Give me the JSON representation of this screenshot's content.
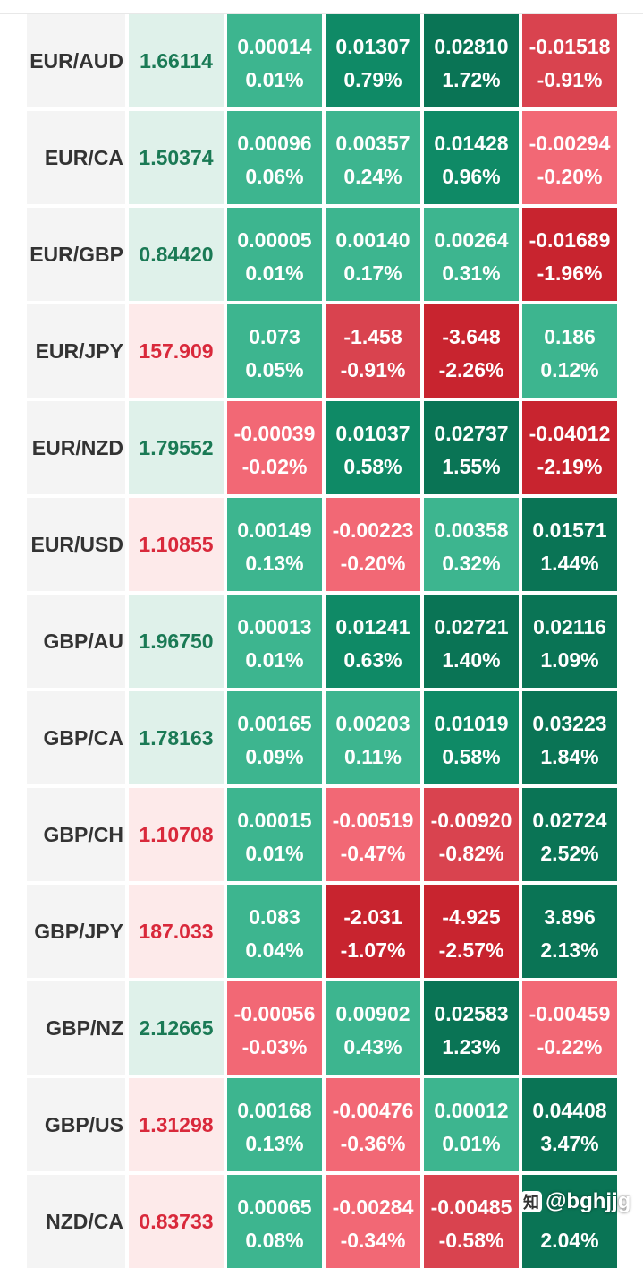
{
  "rows": [
    {
      "symbol": "EUR/AUD",
      "price": "1.66114",
      "trend": "up",
      "changes": [
        {
          "abs": "0.00014",
          "pct": "0.01%",
          "color": "#3db58f"
        },
        {
          "abs": "0.01307",
          "pct": "0.79%",
          "color": "#0f8a66"
        },
        {
          "abs": "0.02810",
          "pct": "1.72%",
          "color": "#0a7455"
        },
        {
          "abs": "-0.01518",
          "pct": "-0.91%",
          "color": "#d9434f"
        }
      ]
    },
    {
      "symbol": "EUR/CA",
      "price": "1.50374",
      "trend": "up",
      "changes": [
        {
          "abs": "0.00096",
          "pct": "0.06%",
          "color": "#3db58f"
        },
        {
          "abs": "0.00357",
          "pct": "0.24%",
          "color": "#3db58f"
        },
        {
          "abs": "0.01428",
          "pct": "0.96%",
          "color": "#0f8a66"
        },
        {
          "abs": "-0.00294",
          "pct": "-0.20%",
          "color": "#f26875"
        }
      ]
    },
    {
      "symbol": "EUR/GBP",
      "price": "0.84420",
      "trend": "up",
      "changes": [
        {
          "abs": "0.00005",
          "pct": "0.01%",
          "color": "#3db58f"
        },
        {
          "abs": "0.00140",
          "pct": "0.17%",
          "color": "#3db58f"
        },
        {
          "abs": "0.00264",
          "pct": "0.31%",
          "color": "#3db58f"
        },
        {
          "abs": "-0.01689",
          "pct": "-1.96%",
          "color": "#c8242f"
        }
      ]
    },
    {
      "symbol": "EUR/JPY",
      "price": "157.909",
      "trend": "down",
      "changes": [
        {
          "abs": "0.073",
          "pct": "0.05%",
          "color": "#3db58f"
        },
        {
          "abs": "-1.458",
          "pct": "-0.91%",
          "color": "#d9434f"
        },
        {
          "abs": "-3.648",
          "pct": "-2.26%",
          "color": "#c8242f"
        },
        {
          "abs": "0.186",
          "pct": "0.12%",
          "color": "#3db58f"
        }
      ]
    },
    {
      "symbol": "EUR/NZD",
      "price": "1.79552",
      "trend": "up",
      "changes": [
        {
          "abs": "-0.00039",
          "pct": "-0.02%",
          "color": "#f26875"
        },
        {
          "abs": "0.01037",
          "pct": "0.58%",
          "color": "#0f8a66"
        },
        {
          "abs": "0.02737",
          "pct": "1.55%",
          "color": "#0a7455"
        },
        {
          "abs": "-0.04012",
          "pct": "-2.19%",
          "color": "#c8242f"
        }
      ]
    },
    {
      "symbol": "EUR/USD",
      "price": "1.10855",
      "trend": "down",
      "changes": [
        {
          "abs": "0.00149",
          "pct": "0.13%",
          "color": "#3db58f"
        },
        {
          "abs": "-0.00223",
          "pct": "-0.20%",
          "color": "#f26875"
        },
        {
          "abs": "0.00358",
          "pct": "0.32%",
          "color": "#3db58f"
        },
        {
          "abs": "0.01571",
          "pct": "1.44%",
          "color": "#0a7455"
        }
      ]
    },
    {
      "symbol": "GBP/AU",
      "price": "1.96750",
      "trend": "up",
      "changes": [
        {
          "abs": "0.00013",
          "pct": "0.01%",
          "color": "#3db58f"
        },
        {
          "abs": "0.01241",
          "pct": "0.63%",
          "color": "#0f8a66"
        },
        {
          "abs": "0.02721",
          "pct": "1.40%",
          "color": "#0a7455"
        },
        {
          "abs": "0.02116",
          "pct": "1.09%",
          "color": "#0a7455"
        }
      ]
    },
    {
      "symbol": "GBP/CA",
      "price": "1.78163",
      "trend": "up",
      "changes": [
        {
          "abs": "0.00165",
          "pct": "0.09%",
          "color": "#3db58f"
        },
        {
          "abs": "0.00203",
          "pct": "0.11%",
          "color": "#3db58f"
        },
        {
          "abs": "0.01019",
          "pct": "0.58%",
          "color": "#0f8a66"
        },
        {
          "abs": "0.03223",
          "pct": "1.84%",
          "color": "#0a7455"
        }
      ]
    },
    {
      "symbol": "GBP/CH",
      "price": "1.10708",
      "trend": "down",
      "changes": [
        {
          "abs": "0.00015",
          "pct": "0.01%",
          "color": "#3db58f"
        },
        {
          "abs": "-0.00519",
          "pct": "-0.47%",
          "color": "#f26875"
        },
        {
          "abs": "-0.00920",
          "pct": "-0.82%",
          "color": "#d9434f"
        },
        {
          "abs": "0.02724",
          "pct": "2.52%",
          "color": "#0a7455"
        }
      ]
    },
    {
      "symbol": "GBP/JPY",
      "price": "187.033",
      "trend": "down",
      "changes": [
        {
          "abs": "0.083",
          "pct": "0.04%",
          "color": "#3db58f"
        },
        {
          "abs": "-2.031",
          "pct": "-1.07%",
          "color": "#c8242f"
        },
        {
          "abs": "-4.925",
          "pct": "-2.57%",
          "color": "#c8242f"
        },
        {
          "abs": "3.896",
          "pct": "2.13%",
          "color": "#0a7455"
        }
      ]
    },
    {
      "symbol": "GBP/NZ",
      "price": "2.12665",
      "trend": "up",
      "changes": [
        {
          "abs": "-0.00056",
          "pct": "-0.03%",
          "color": "#f26875"
        },
        {
          "abs": "0.00902",
          "pct": "0.43%",
          "color": "#3db58f"
        },
        {
          "abs": "0.02583",
          "pct": "1.23%",
          "color": "#0a7455"
        },
        {
          "abs": "-0.00459",
          "pct": "-0.22%",
          "color": "#f26875"
        }
      ]
    },
    {
      "symbol": "GBP/US",
      "price": "1.31298",
      "trend": "down",
      "changes": [
        {
          "abs": "0.00168",
          "pct": "0.13%",
          "color": "#3db58f"
        },
        {
          "abs": "-0.00476",
          "pct": "-0.36%",
          "color": "#f26875"
        },
        {
          "abs": "0.00012",
          "pct": "0.01%",
          "color": "#3db58f"
        },
        {
          "abs": "0.04408",
          "pct": "3.47%",
          "color": "#0a7455"
        }
      ]
    },
    {
      "symbol": "NZD/CA",
      "price": "0.83733",
      "trend": "down",
      "changes": [
        {
          "abs": "0.00065",
          "pct": "0.08%",
          "color": "#3db58f"
        },
        {
          "abs": "-0.00284",
          "pct": "-0.34%",
          "color": "#f26875"
        },
        {
          "abs": "-0.00485",
          "pct": "-0.58%",
          "color": "#d9434f"
        },
        {
          "abs": "",
          "pct": "2.04%",
          "color": "#0a7455"
        }
      ]
    }
  ],
  "watermark": {
    "icon": "zhihu-logo-icon",
    "text": "@bghjjg"
  }
}
